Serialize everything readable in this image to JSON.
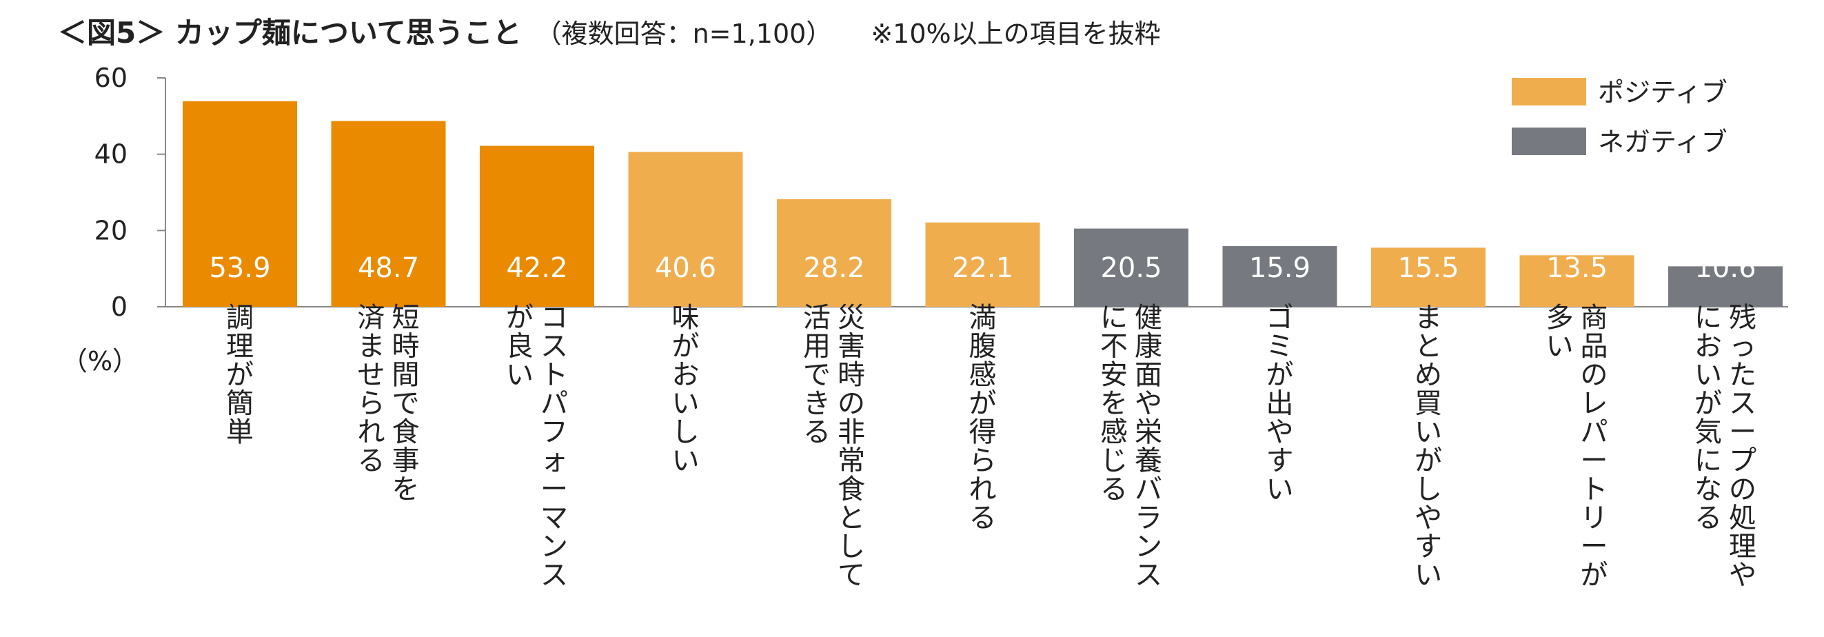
{
  "header": {
    "title": "＜図5＞ カップ麺について思うこと",
    "subtitle": "（複数回答：n=1,100）",
    "note": "※10%以上の項目を抜粋"
  },
  "chart_data": {
    "type": "bar",
    "unit_label": "（%）",
    "ylim": [
      0,
      60
    ],
    "yticks": [
      0,
      20,
      40,
      60
    ],
    "grid": false,
    "legend_position": "top-right",
    "series": [
      {
        "name": "ポジティブ",
        "color": "#F0AD4E"
      },
      {
        "name": "ネガティブ",
        "color": "#767A80"
      }
    ],
    "colors": {
      "positive_highlight": "#EA8A00",
      "positive": "#F0AD4E",
      "negative": "#767A80",
      "axis": "#888888"
    },
    "bars": [
      {
        "category_lines": [
          "調理が簡単"
        ],
        "value": 53.9,
        "value_label": "53.9",
        "series": "ポジティブ",
        "highlight": true
      },
      {
        "category_lines": [
          "短時間で食事を",
          "済ませられる"
        ],
        "value": 48.7,
        "value_label": "48.7",
        "series": "ポジティブ",
        "highlight": true
      },
      {
        "category_lines": [
          "コストパフォーマンス",
          "が良い"
        ],
        "value": 42.2,
        "value_label": "42.2",
        "series": "ポジティブ",
        "highlight": true
      },
      {
        "category_lines": [
          "味がおいしい"
        ],
        "value": 40.6,
        "value_label": "40.6",
        "series": "ポジティブ",
        "highlight": false
      },
      {
        "category_lines": [
          "災害時の非常食として",
          "活用できる"
        ],
        "value": 28.2,
        "value_label": "28.2",
        "series": "ポジティブ",
        "highlight": false
      },
      {
        "category_lines": [
          "満腹感が得られる"
        ],
        "value": 22.1,
        "value_label": "22.1",
        "series": "ポジティブ",
        "highlight": false
      },
      {
        "category_lines": [
          "健康面や栄養バランス",
          "に不安を感じる"
        ],
        "value": 20.5,
        "value_label": "20.5",
        "series": "ネガティブ",
        "highlight": false
      },
      {
        "category_lines": [
          "ゴミが出やすい"
        ],
        "value": 15.9,
        "value_label": "15.9",
        "series": "ネガティブ",
        "highlight": false
      },
      {
        "category_lines": [
          "まとめ買いがしやすい"
        ],
        "value": 15.5,
        "value_label": "15.5",
        "series": "ポジティブ",
        "highlight": false
      },
      {
        "category_lines": [
          "商品のレパートリーが",
          "多い"
        ],
        "value": 13.5,
        "value_label": "13.5",
        "series": "ポジティブ",
        "highlight": false
      },
      {
        "category_lines": [
          "残ったスープの処理や",
          "においが気になる"
        ],
        "value": 10.6,
        "value_label": "10.6",
        "series": "ネガティブ",
        "highlight": false
      }
    ]
  }
}
